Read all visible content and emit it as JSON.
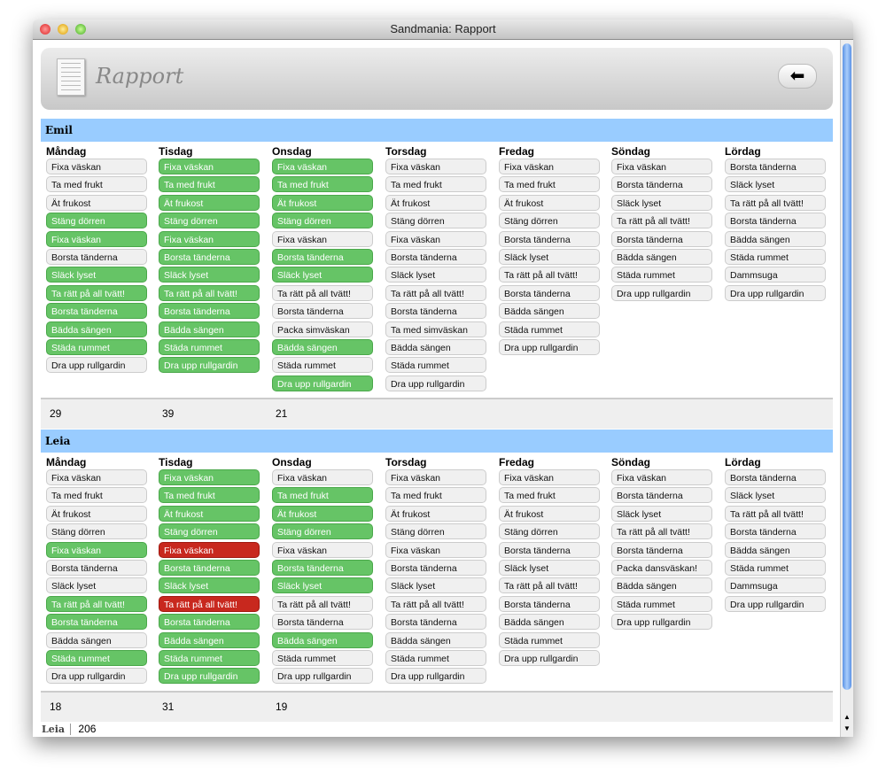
{
  "window": {
    "title": "Sandmania: Rapport"
  },
  "header": {
    "title": "Rapport",
    "back_icon": "arrow-left-icon"
  },
  "colors": {
    "done": "#66c466",
    "missed": "#c8281e",
    "band": "#99ccff"
  },
  "children": [
    {
      "name": "Emil",
      "totals": [
        "29",
        "39",
        "21"
      ],
      "days": [
        {
          "day": "Måndag",
          "tasks": [
            [
              "Fixa väskan",
              "n"
            ],
            [
              "Ta med frukt",
              "n"
            ],
            [
              "Ät frukost",
              "n"
            ],
            [
              "Stäng dörren",
              "g"
            ],
            [
              "Fixa väskan",
              "g"
            ],
            [
              "Borsta tänderna",
              "n"
            ],
            [
              "Släck lyset",
              "g"
            ],
            [
              "Ta rätt på all tvätt!",
              "g"
            ],
            [
              "Borsta tänderna",
              "g"
            ],
            [
              "Bädda sängen",
              "g"
            ],
            [
              "Städa rummet",
              "g"
            ],
            [
              "Dra upp rullgardin",
              "n"
            ]
          ]
        },
        {
          "day": "Tisdag",
          "tasks": [
            [
              "Fixa väskan",
              "g"
            ],
            [
              "Ta med frukt",
              "g"
            ],
            [
              "Ät frukost",
              "g"
            ],
            [
              "Stäng dörren",
              "g"
            ],
            [
              "Fixa väskan",
              "g"
            ],
            [
              "Borsta tänderna",
              "g"
            ],
            [
              "Släck lyset",
              "g"
            ],
            [
              "Ta rätt på all tvätt!",
              "g"
            ],
            [
              "Borsta tänderna",
              "g"
            ],
            [
              "Bädda sängen",
              "g"
            ],
            [
              "Städa rummet",
              "g"
            ],
            [
              "Dra upp rullgardin",
              "g"
            ]
          ]
        },
        {
          "day": "Onsdag",
          "tasks": [
            [
              "Fixa väskan",
              "g"
            ],
            [
              "Ta med frukt",
              "g"
            ],
            [
              "Ät frukost",
              "g"
            ],
            [
              "Stäng dörren",
              "g"
            ],
            [
              "Fixa väskan",
              "n"
            ],
            [
              "Borsta tänderna",
              "g"
            ],
            [
              "Släck lyset",
              "g"
            ],
            [
              "Ta rätt på all tvätt!",
              "n"
            ],
            [
              "Borsta tänderna",
              "n"
            ],
            [
              "Packa simväskan",
              "n"
            ],
            [
              "Bädda sängen",
              "g"
            ],
            [
              "Städa rummet",
              "n"
            ],
            [
              "Dra upp rullgardin",
              "g"
            ]
          ]
        },
        {
          "day": "Torsdag",
          "tasks": [
            [
              "Fixa väskan",
              "n"
            ],
            [
              "Ta med frukt",
              "n"
            ],
            [
              "Ät frukost",
              "n"
            ],
            [
              "Stäng dörren",
              "n"
            ],
            [
              "Fixa väskan",
              "n"
            ],
            [
              "Borsta tänderna",
              "n"
            ],
            [
              "Släck lyset",
              "n"
            ],
            [
              "Ta rätt på all tvätt!",
              "n"
            ],
            [
              "Borsta tänderna",
              "n"
            ],
            [
              "Ta med simväskan",
              "n"
            ],
            [
              "Bädda sängen",
              "n"
            ],
            [
              "Städa rummet",
              "n"
            ],
            [
              "Dra upp rullgardin",
              "n"
            ]
          ]
        },
        {
          "day": "Fredag",
          "tasks": [
            [
              "Fixa väskan",
              "n"
            ],
            [
              "Ta med frukt",
              "n"
            ],
            [
              "Ät frukost",
              "n"
            ],
            [
              "Stäng dörren",
              "n"
            ],
            [
              "Borsta tänderna",
              "n"
            ],
            [
              "Släck lyset",
              "n"
            ],
            [
              "Ta rätt på all tvätt!",
              "n"
            ],
            [
              "Borsta tänderna",
              "n"
            ],
            [
              "Bädda sängen",
              "n"
            ],
            [
              "Städa rummet",
              "n"
            ],
            [
              "Dra upp rullgardin",
              "n"
            ]
          ]
        },
        {
          "day": "Söndag",
          "tasks": [
            [
              "Fixa väskan",
              "n"
            ],
            [
              "Borsta tänderna",
              "n"
            ],
            [
              "Släck lyset",
              "n"
            ],
            [
              "Ta rätt på all tvätt!",
              "n"
            ],
            [
              "Borsta tänderna",
              "n"
            ],
            [
              "Bädda sängen",
              "n"
            ],
            [
              "Städa rummet",
              "n"
            ],
            [
              "Dra upp rullgardin",
              "n"
            ]
          ]
        },
        {
          "day": "Lördag",
          "tasks": [
            [
              "Borsta tänderna",
              "n"
            ],
            [
              "Släck lyset",
              "n"
            ],
            [
              "Ta rätt på all tvätt!",
              "n"
            ],
            [
              "Borsta tänderna",
              "n"
            ],
            [
              "Bädda sängen",
              "n"
            ],
            [
              "Städa rummet",
              "n"
            ],
            [
              "Dammsuga",
              "n"
            ],
            [
              "Dra upp rullgardin",
              "n"
            ]
          ]
        }
      ]
    },
    {
      "name": "Leia",
      "totals": [
        "18",
        "31",
        "19"
      ],
      "days": [
        {
          "day": "Måndag",
          "tasks": [
            [
              "Fixa väskan",
              "n"
            ],
            [
              "Ta med frukt",
              "n"
            ],
            [
              "Ät frukost",
              "n"
            ],
            [
              "Stäng dörren",
              "n"
            ],
            [
              "Fixa väskan",
              "g"
            ],
            [
              "Borsta tänderna",
              "n"
            ],
            [
              "Släck lyset",
              "n"
            ],
            [
              "Ta rätt på all tvätt!",
              "g"
            ],
            [
              "Borsta tänderna",
              "g"
            ],
            [
              "Bädda sängen",
              "n"
            ],
            [
              "Städa rummet",
              "g"
            ],
            [
              "Dra upp rullgardin",
              "n"
            ]
          ]
        },
        {
          "day": "Tisdag",
          "tasks": [
            [
              "Fixa väskan",
              "g"
            ],
            [
              "Ta med frukt",
              "g"
            ],
            [
              "Ät frukost",
              "g"
            ],
            [
              "Stäng dörren",
              "g"
            ],
            [
              "Fixa väskan",
              "r"
            ],
            [
              "Borsta tänderna",
              "g"
            ],
            [
              "Släck lyset",
              "g"
            ],
            [
              "Ta rätt på all tvätt!",
              "r"
            ],
            [
              "Borsta tänderna",
              "g"
            ],
            [
              "Bädda sängen",
              "g"
            ],
            [
              "Städa rummet",
              "g"
            ],
            [
              "Dra upp rullgardin",
              "g"
            ]
          ]
        },
        {
          "day": "Onsdag",
          "tasks": [
            [
              "Fixa väskan",
              "n"
            ],
            [
              "Ta med frukt",
              "g"
            ],
            [
              "Ät frukost",
              "g"
            ],
            [
              "Stäng dörren",
              "g"
            ],
            [
              "Fixa väskan",
              "n"
            ],
            [
              "Borsta tänderna",
              "g"
            ],
            [
              "Släck lyset",
              "g"
            ],
            [
              "Ta rätt på all tvätt!",
              "n"
            ],
            [
              "Borsta tänderna",
              "n"
            ],
            [
              "Bädda sängen",
              "g"
            ],
            [
              "Städa rummet",
              "n"
            ],
            [
              "Dra upp rullgardin",
              "n"
            ]
          ]
        },
        {
          "day": "Torsdag",
          "tasks": [
            [
              "Fixa väskan",
              "n"
            ],
            [
              "Ta med frukt",
              "n"
            ],
            [
              "Ät frukost",
              "n"
            ],
            [
              "Stäng dörren",
              "n"
            ],
            [
              "Fixa väskan",
              "n"
            ],
            [
              "Borsta tänderna",
              "n"
            ],
            [
              "Släck lyset",
              "n"
            ],
            [
              "Ta rätt på all tvätt!",
              "n"
            ],
            [
              "Borsta tänderna",
              "n"
            ],
            [
              "Bädda sängen",
              "n"
            ],
            [
              "Städa rummet",
              "n"
            ],
            [
              "Dra upp rullgardin",
              "n"
            ]
          ]
        },
        {
          "day": "Fredag",
          "tasks": [
            [
              "Fixa väskan",
              "n"
            ],
            [
              "Ta med frukt",
              "n"
            ],
            [
              "Ät frukost",
              "n"
            ],
            [
              "Stäng dörren",
              "n"
            ],
            [
              "Borsta tänderna",
              "n"
            ],
            [
              "Släck lyset",
              "n"
            ],
            [
              "Ta rätt på all tvätt!",
              "n"
            ],
            [
              "Borsta tänderna",
              "n"
            ],
            [
              "Bädda sängen",
              "n"
            ],
            [
              "Städa rummet",
              "n"
            ],
            [
              "Dra upp rullgardin",
              "n"
            ]
          ]
        },
        {
          "day": "Söndag",
          "tasks": [
            [
              "Fixa väskan",
              "n"
            ],
            [
              "Borsta tänderna",
              "n"
            ],
            [
              "Släck lyset",
              "n"
            ],
            [
              "Ta rätt på all tvätt!",
              "n"
            ],
            [
              "Borsta tänderna",
              "n"
            ],
            [
              "Packa dansväskan!",
              "n"
            ],
            [
              "Bädda sängen",
              "n"
            ],
            [
              "Städa rummet",
              "n"
            ],
            [
              "Dra upp rullgardin",
              "n"
            ]
          ]
        },
        {
          "day": "Lördag",
          "tasks": [
            [
              "Borsta tänderna",
              "n"
            ],
            [
              "Släck lyset",
              "n"
            ],
            [
              "Ta rätt på all tvätt!",
              "n"
            ],
            [
              "Borsta tänderna",
              "n"
            ],
            [
              "Bädda sängen",
              "n"
            ],
            [
              "Städa rummet",
              "n"
            ],
            [
              "Dammsuga",
              "n"
            ],
            [
              "Dra upp rullgardin",
              "n"
            ]
          ]
        }
      ]
    }
  ],
  "footer": {
    "name": "Leia",
    "value": "206"
  }
}
